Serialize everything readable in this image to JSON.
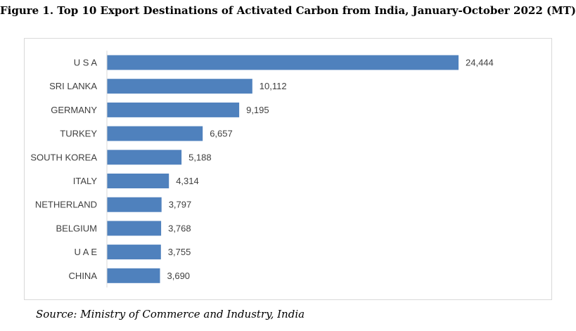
{
  "figure": {
    "title": "Figure 1. Top 10 Export Destinations of Activated Carbon from India, January-October 2022 (MT)",
    "source": "Source: Ministry of Commerce and Industry, India"
  },
  "colors": {
    "bar": "#4f81bd",
    "axis": "#d9d9d9",
    "text": "#404040"
  },
  "chart_data": {
    "type": "bar",
    "orientation": "horizontal",
    "title": "Top 10 Export Destinations of Activated Carbon from India, January-October 2022 (MT)",
    "xlabel": "",
    "ylabel": "",
    "categories": [
      "U S A",
      "SRI LANKA",
      "GERMANY",
      "TURKEY",
      "SOUTH KOREA",
      "ITALY",
      "NETHERLAND",
      "BELGIUM",
      "U A E",
      "CHINA"
    ],
    "values": [
      24444,
      10112,
      9195,
      6657,
      5188,
      4314,
      3797,
      3768,
      3755,
      3690
    ],
    "data_labels": [
      "24,444",
      "10,112",
      "9,195",
      "6,657",
      "5,188",
      "4,314",
      "3,797",
      "3,768",
      "3,755",
      "3,690"
    ],
    "xlim": [
      0,
      24444
    ],
    "grid": false,
    "legend": "none"
  }
}
